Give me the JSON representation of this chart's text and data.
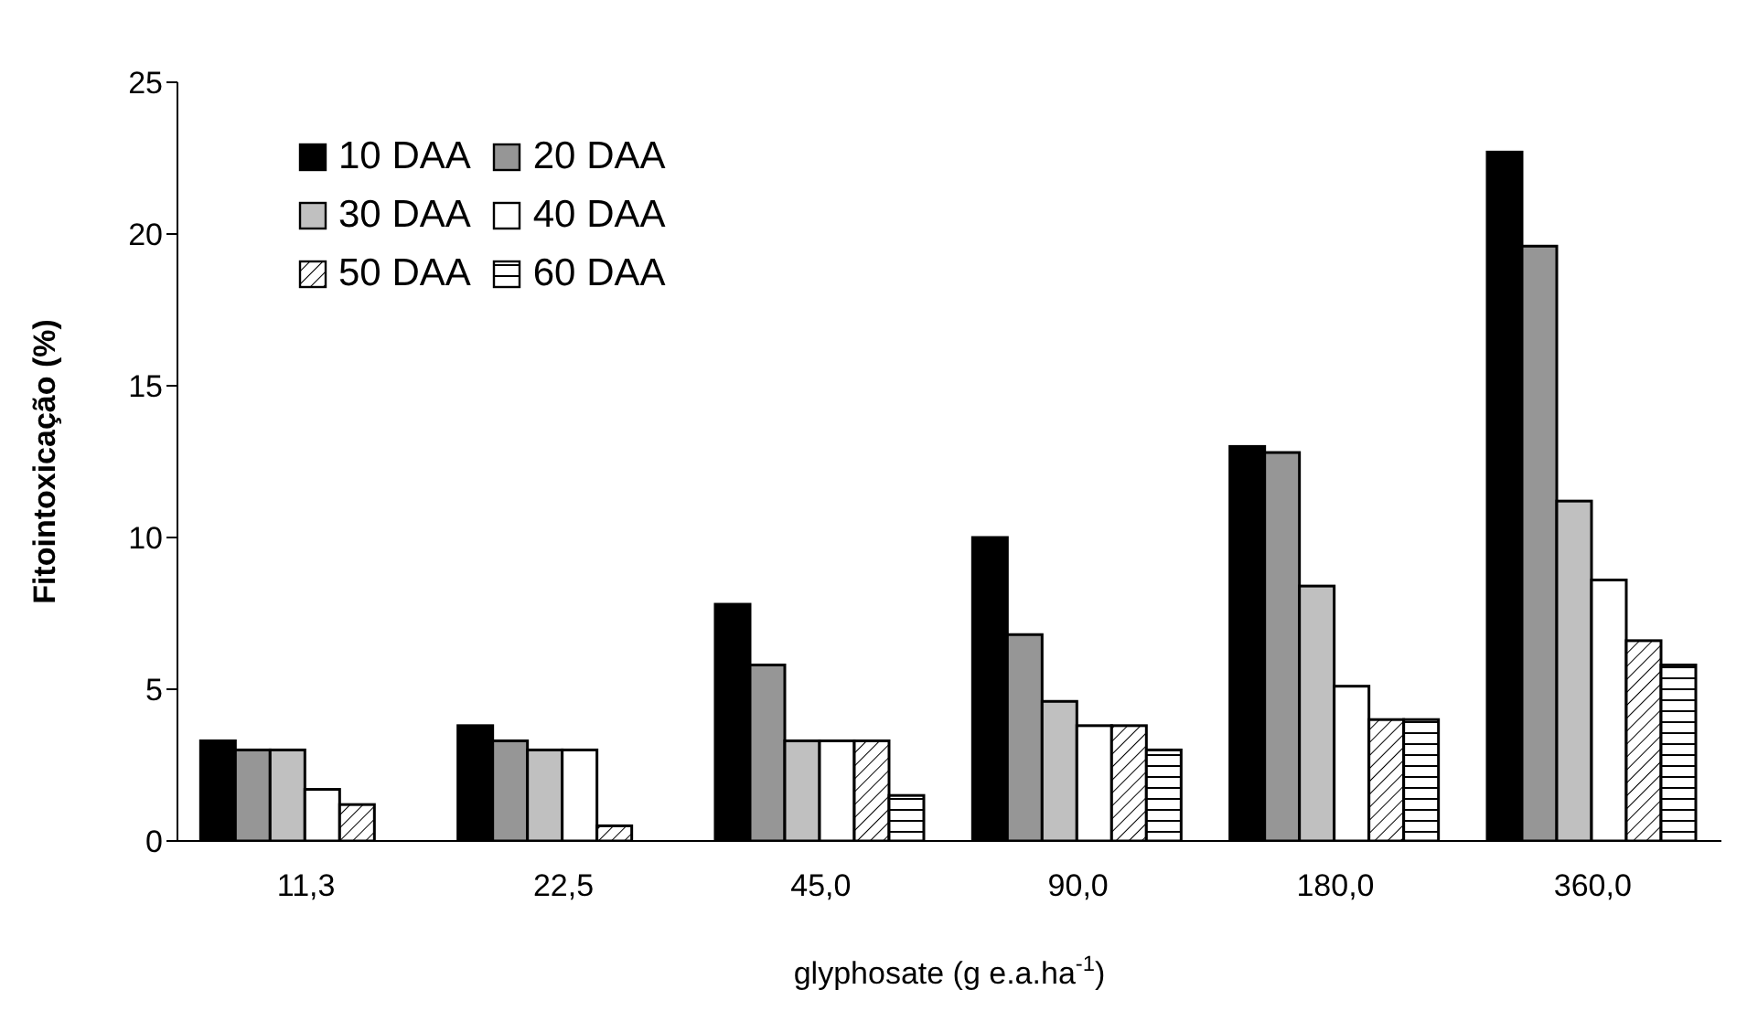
{
  "chart_data": {
    "type": "bar",
    "xlabel": "glyphosate (g e.a.ha$^{-1}$)",
    "ylabel": "Fitointoxicação (%)",
    "categories": [
      "11,3",
      "22,5",
      "45,0",
      "90,0",
      "180,0",
      "360,0"
    ],
    "series": [
      {
        "name": "10 DAA",
        "color": "#000000",
        "values": [
          3.3,
          3.8,
          7.8,
          10.0,
          13.0,
          22.7
        ]
      },
      {
        "name": "20 DAA",
        "color": "#969696",
        "values": [
          3.0,
          3.3,
          5.8,
          6.8,
          12.8,
          19.6
        ]
      },
      {
        "name": "30 DAA",
        "color": "#c0c0c0",
        "values": [
          3.0,
          3.0,
          3.3,
          4.6,
          8.4,
          11.2
        ]
      },
      {
        "name": "40 DAA",
        "color": "#ffffff",
        "values": [
          1.7,
          3.0,
          3.3,
          3.8,
          5.1,
          8.6
        ]
      },
      {
        "name": "50 DAA",
        "color": "#ffffff",
        "values": [
          1.2,
          0.5,
          3.3,
          3.8,
          4.0,
          6.6
        ]
      },
      {
        "name": "60 DAA",
        "color": "#ffffff",
        "values": [
          null,
          null,
          1.5,
          3.0,
          4.0,
          5.8
        ]
      }
    ],
    "ylim": [
      0,
      25
    ],
    "yticks": [
      0,
      5,
      10,
      15,
      20,
      25
    ],
    "grid": false,
    "legend": "top left"
  }
}
